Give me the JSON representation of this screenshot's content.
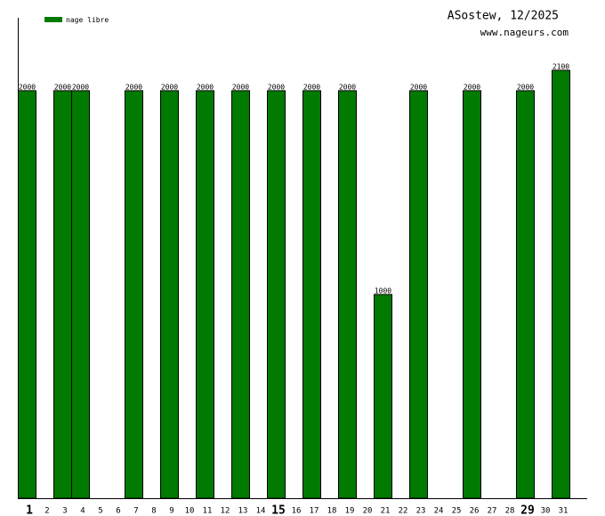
{
  "chart_data": {
    "type": "bar",
    "title": "ASostew, 12/2025",
    "subtitle": "www.nageurs.com",
    "categories": [
      "1",
      "2",
      "3",
      "4",
      "5",
      "6",
      "7",
      "8",
      "9",
      "10",
      "11",
      "12",
      "13",
      "14",
      "15",
      "16",
      "17",
      "18",
      "19",
      "20",
      "21",
      "22",
      "23",
      "24",
      "25",
      "26",
      "27",
      "28",
      "29",
      "30",
      "31"
    ],
    "series": [
      {
        "name": "nage libre",
        "color": "#007a00",
        "values": [
          2000,
          null,
          2000,
          2000,
          null,
          null,
          2000,
          null,
          2000,
          null,
          2000,
          null,
          2000,
          null,
          2000,
          null,
          2000,
          null,
          2000,
          null,
          1000,
          null,
          2000,
          null,
          null,
          2000,
          null,
          null,
          2000,
          null,
          2100
        ]
      }
    ],
    "emphasized_categories": [
      0,
      14,
      28
    ],
    "legend": "top-left"
  }
}
